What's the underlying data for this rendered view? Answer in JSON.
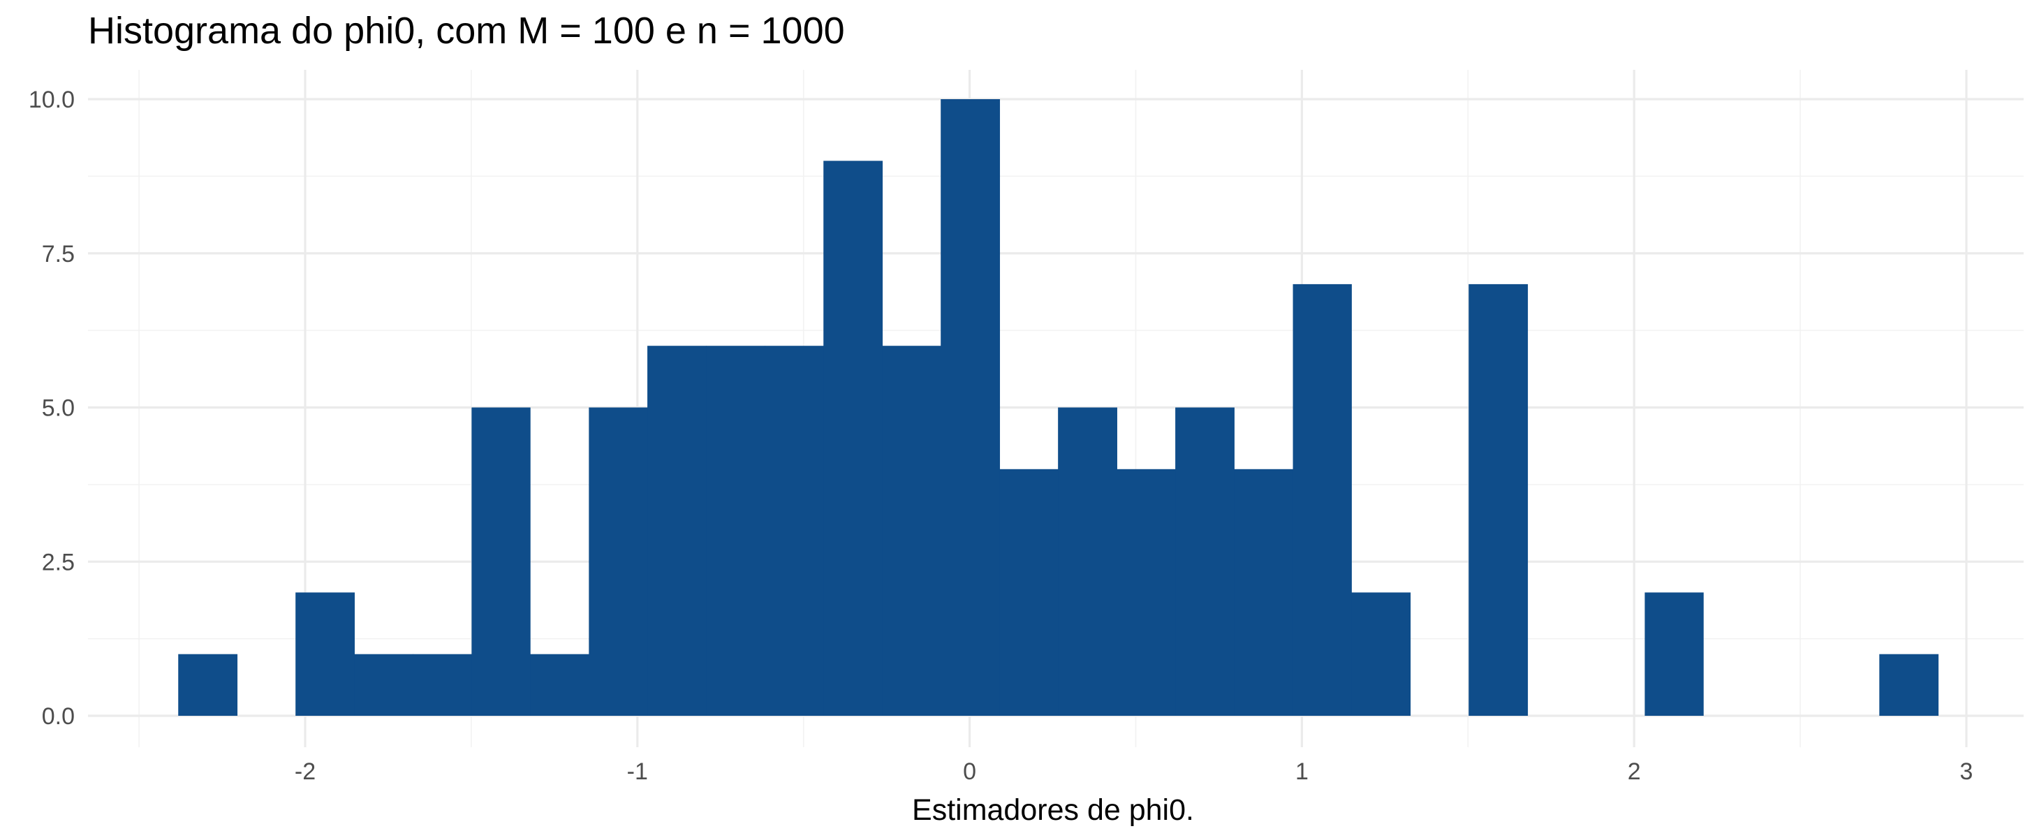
{
  "chart_data": {
    "type": "bar",
    "title": "Histograma do phi0, com M = 100 e n = 1000",
    "xlabel": "Estimadores de phi0.",
    "ylabel": "",
    "xlim": [
      -2.5,
      3.0
    ],
    "ylim": [
      0,
      10.0
    ],
    "x_ticks": [
      "-2",
      "-1",
      "0",
      "1",
      "2",
      "3"
    ],
    "x_tick_values": [
      -2,
      -1,
      0,
      1,
      2,
      3
    ],
    "y_ticks": [
      "0.0",
      "2.5",
      "5.0",
      "7.5",
      "10.0"
    ],
    "y_tick_values": [
      0,
      2.5,
      5.0,
      7.5,
      10.0
    ],
    "bin_width": 0.1766,
    "bins": [
      {
        "x0": -2.382,
        "x1": -2.205,
        "count": 1
      },
      {
        "x0": -2.205,
        "x1": -2.029,
        "count": 0
      },
      {
        "x0": -2.029,
        "x1": -1.852,
        "count": 2
      },
      {
        "x0": -1.852,
        "x1": -1.676,
        "count": 1
      },
      {
        "x0": -1.676,
        "x1": -1.499,
        "count": 1
      },
      {
        "x0": -1.499,
        "x1": -1.323,
        "count": 5
      },
      {
        "x0": -1.323,
        "x1": -1.146,
        "count": 1
      },
      {
        "x0": -1.146,
        "x1": -0.97,
        "count": 5
      },
      {
        "x0": -0.97,
        "x1": -0.793,
        "count": 6
      },
      {
        "x0": -0.793,
        "x1": -0.616,
        "count": 6
      },
      {
        "x0": -0.616,
        "x1": -0.44,
        "count": 6
      },
      {
        "x0": -0.44,
        "x1": -0.263,
        "count": 9
      },
      {
        "x0": -0.263,
        "x1": -0.087,
        "count": 6
      },
      {
        "x0": -0.087,
        "x1": 0.09,
        "count": 10
      },
      {
        "x0": 0.09,
        "x1": 0.266,
        "count": 4
      },
      {
        "x0": 0.266,
        "x1": 0.443,
        "count": 5
      },
      {
        "x0": 0.443,
        "x1": 0.619,
        "count": 4
      },
      {
        "x0": 0.619,
        "x1": 0.796,
        "count": 5
      },
      {
        "x0": 0.796,
        "x1": 0.973,
        "count": 4
      },
      {
        "x0": 0.973,
        "x1": 1.149,
        "count": 7
      },
      {
        "x0": 1.149,
        "x1": 1.326,
        "count": 2
      },
      {
        "x0": 1.326,
        "x1": 1.502,
        "count": 0
      },
      {
        "x0": 1.502,
        "x1": 1.679,
        "count": 7
      },
      {
        "x0": 1.679,
        "x1": 1.855,
        "count": 0
      },
      {
        "x0": 1.855,
        "x1": 2.032,
        "count": 0
      },
      {
        "x0": 2.032,
        "x1": 2.208,
        "count": 2
      },
      {
        "x0": 2.208,
        "x1": 2.385,
        "count": 0
      },
      {
        "x0": 2.385,
        "x1": 2.561,
        "count": 0
      },
      {
        "x0": 2.561,
        "x1": 2.738,
        "count": 0
      },
      {
        "x0": 2.738,
        "x1": 2.915,
        "count": 1
      }
    ],
    "bar_color": "#0f4d8a",
    "grid": true,
    "legend": "none"
  }
}
